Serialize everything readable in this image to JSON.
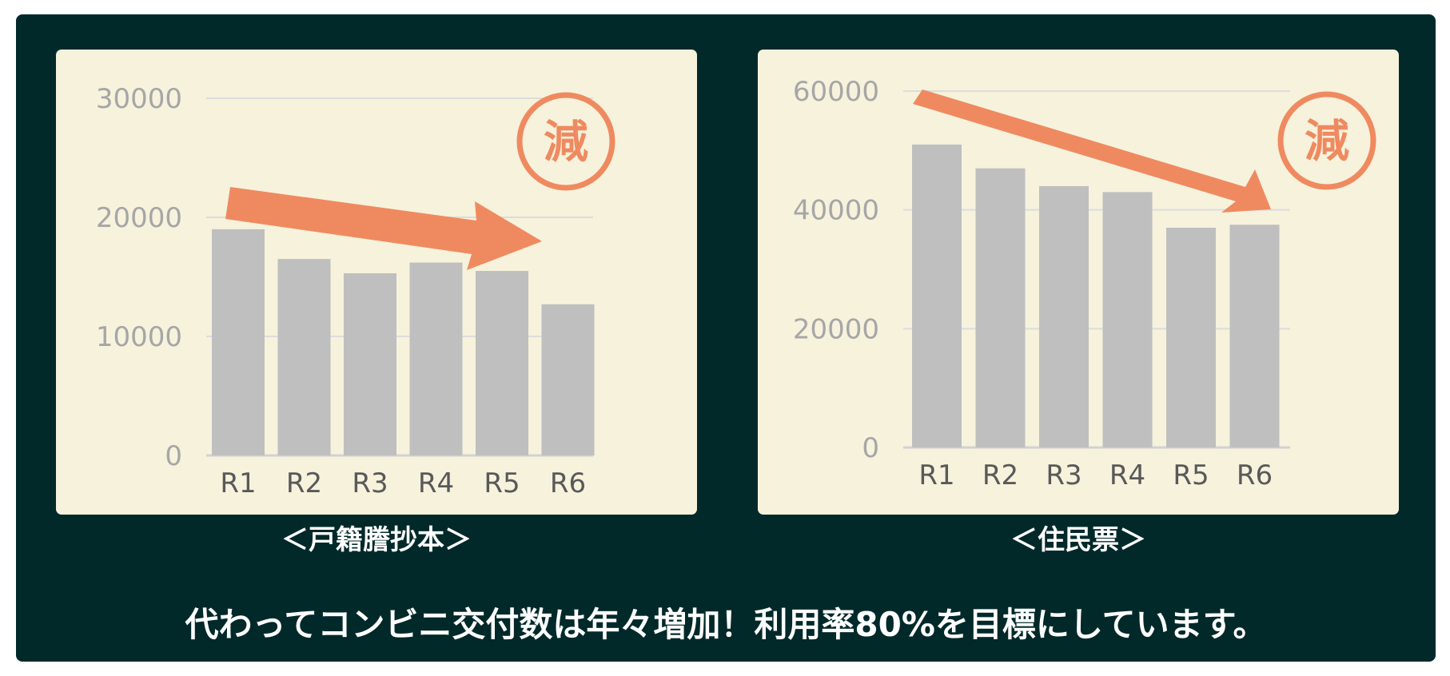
{
  "colors": {
    "background": "#02292a",
    "panel": "#f6f2dc",
    "bar": "#bfbfbf",
    "accent": "#ef8a60",
    "grid": "#dcdcdc",
    "tick": "#a6a6a6"
  },
  "charts": {
    "koseki": {
      "caption": "＜戸籍謄抄本＞",
      "badge": "減",
      "arrow_icon": "decrease-arrow-icon",
      "chart_data": {
        "type": "bar",
        "categories": [
          "R1",
          "R2",
          "R3",
          "R4",
          "R5",
          "R6"
        ],
        "values": [
          19000,
          16500,
          15300,
          16200,
          15500,
          12700
        ],
        "ylim": [
          0,
          30000
        ],
        "yticks": [
          0,
          10000,
          20000,
          30000
        ],
        "grid": true
      }
    },
    "juminhyo": {
      "caption": "＜住民票＞",
      "badge": "減",
      "arrow_icon": "decrease-arrow-icon",
      "chart_data": {
        "type": "bar",
        "categories": [
          "R1",
          "R2",
          "R3",
          "R4",
          "R5",
          "R6"
        ],
        "values": [
          51000,
          47000,
          44000,
          43000,
          37000,
          37500
        ],
        "ylim": [
          0,
          60000
        ],
        "yticks": [
          0,
          20000,
          40000,
          60000
        ],
        "grid": true
      }
    }
  },
  "footer": "代わってコンビニ交付数は年々増加！利用率80%を目標にしています。"
}
